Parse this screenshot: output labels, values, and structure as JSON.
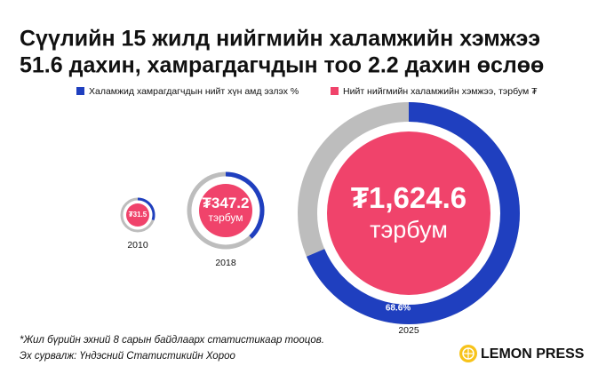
{
  "chart_data": {
    "type": "ring-bubble",
    "title": [
      "Сүүлийн 15 жилд нийгмийн халамжийн хэмжээ",
      "51.6 дахин, хамрагдагчдын тоо 2.2 дахин өслөө"
    ],
    "categories": [
      "2010",
      "2018",
      "2025"
    ],
    "series": [
      {
        "name": "Халамжид хамрагдагчдын нийт хүн амд эзлэх %",
        "color": "#1f3fbf",
        "values": [
          30,
          38,
          68.6
        ],
        "value_labels": [
          null,
          null,
          "68.6%"
        ]
      },
      {
        "name": "Нийт нийгмийн халамжийн хэмжээ, тэрбум ₮",
        "color": "#f0436b",
        "values": [
          31.5,
          347.2,
          1624.6
        ],
        "value_labels": [
          "₮31.5",
          "₮347.2",
          "₮1,624.6"
        ],
        "sublabels": [
          null,
          "тэрбум",
          "тэрбум"
        ]
      }
    ],
    "ring_background": "#bdbdbd",
    "notes": [
      "*Жил бүрийн эхний 8 сарын байдлаарх статистикаар тооцов.",
      "Эх сурвалж: Үндэсний Статистикийн Хороо"
    ],
    "logo": "LEMON PRESS"
  }
}
